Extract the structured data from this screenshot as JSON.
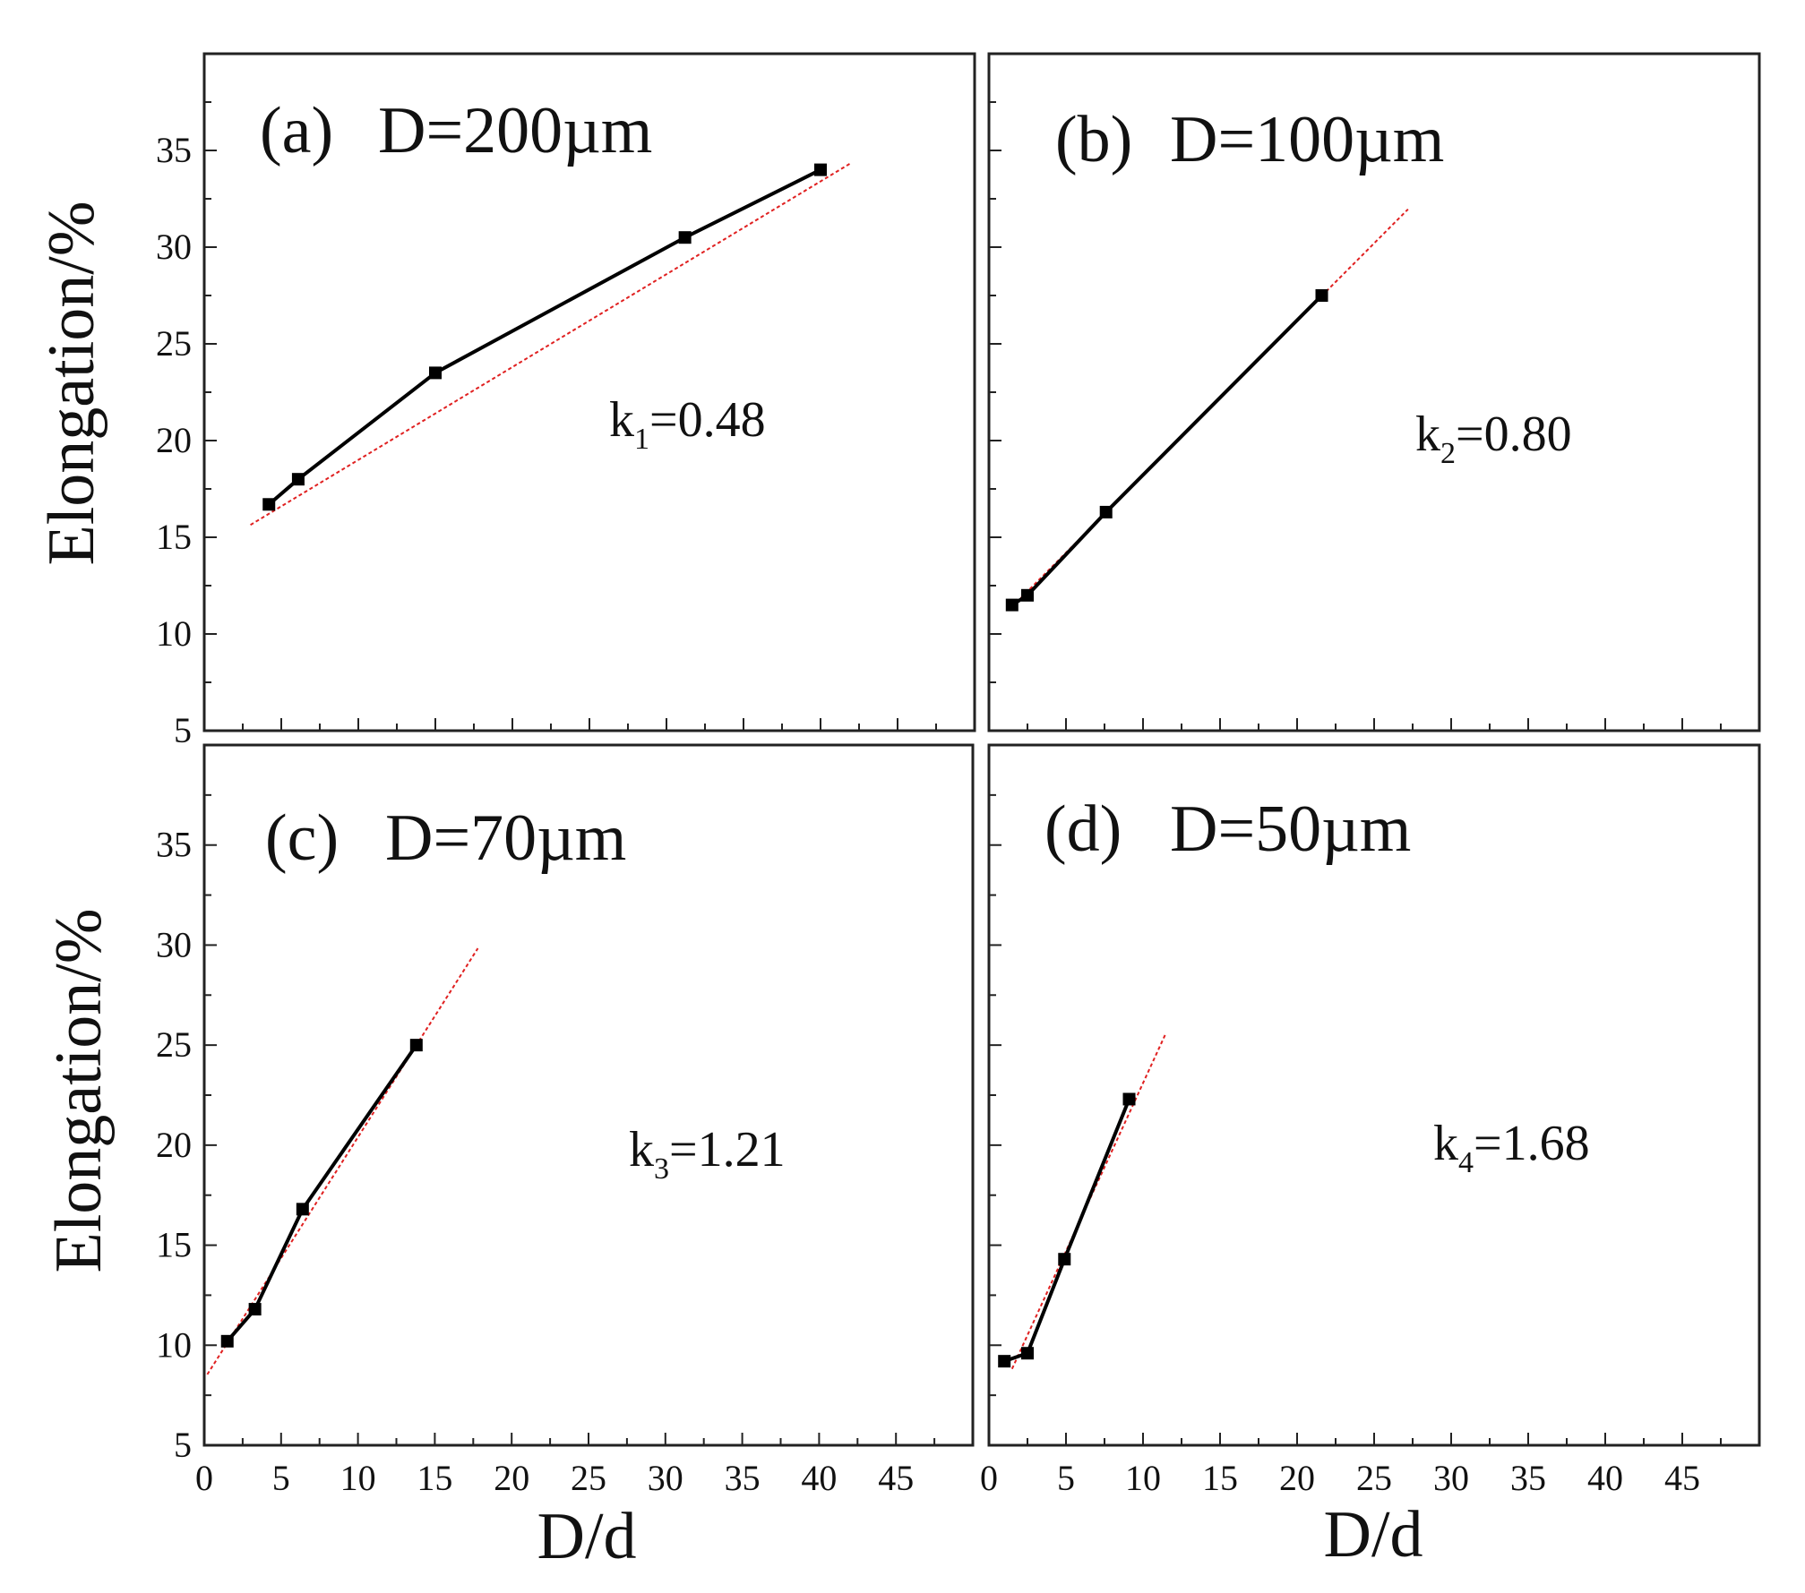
{
  "figure": {
    "y_axis_label": "Elongation/%",
    "x_axis_label": "D/d",
    "colors": {
      "data": "#000000",
      "fit": "#e02020",
      "frame": "#222222"
    }
  },
  "chart_data": [
    {
      "type": "line",
      "panel": "a",
      "label": "(a)",
      "title": "D=200µm",
      "slope_label": {
        "base": "k",
        "sub": "1",
        "value": "=0.48"
      },
      "xlabel": "D/d",
      "ylabel": "Elongation/%",
      "xlim": [
        0,
        50
      ],
      "ylim": [
        5,
        40
      ],
      "xticks": [
        0,
        5,
        10,
        15,
        20,
        25,
        30,
        35,
        40,
        45
      ],
      "yticks": [
        5,
        10,
        15,
        20,
        25,
        30,
        35
      ],
      "series": [
        {
          "name": "data",
          "x": [
            4.2,
            6.1,
            15.0,
            31.2,
            40.0
          ],
          "y": [
            16.7,
            18.0,
            23.5,
            30.5,
            34.0
          ]
        }
      ],
      "fit": {
        "slope": 0.48,
        "intercept": 14.2,
        "x_range": [
          3.0,
          42.0
        ]
      }
    },
    {
      "type": "line",
      "panel": "b",
      "label": "(b)",
      "title": "D=100µm",
      "slope_label": {
        "base": "k",
        "sub": "2",
        "value": "=0.80"
      },
      "xlabel": "D/d",
      "ylabel": "Elongation/%",
      "xlim": [
        0,
        50
      ],
      "ylim": [
        5,
        40
      ],
      "xticks": [
        0,
        5,
        10,
        15,
        20,
        25,
        30,
        35,
        40,
        45
      ],
      "yticks": [
        5,
        10,
        15,
        20,
        25,
        30,
        35
      ],
      "series": [
        {
          "name": "data",
          "x": [
            1.5,
            2.5,
            7.6,
            21.6
          ],
          "y": [
            11.5,
            12.0,
            16.3,
            27.5
          ]
        }
      ],
      "fit": {
        "slope": 0.8,
        "intercept": 10.2,
        "x_range": [
          1.5,
          27.2
        ]
      }
    },
    {
      "type": "line",
      "panel": "c",
      "label": "(c)",
      "title": "D=70µm",
      "slope_label": {
        "base": "k",
        "sub": "3",
        "value": "=1.21"
      },
      "xlabel": "D/d",
      "ylabel": "Elongation/%",
      "xlim": [
        0,
        50
      ],
      "ylim": [
        5,
        40
      ],
      "xticks": [
        0,
        5,
        10,
        15,
        20,
        25,
        30,
        35,
        40,
        45
      ],
      "yticks": [
        5,
        10,
        15,
        20,
        25,
        30,
        35
      ],
      "x_tick_labels_visible": true,
      "series": [
        {
          "name": "data",
          "x": [
            1.5,
            3.3,
            6.4,
            13.8
          ],
          "y": [
            10.2,
            11.8,
            16.8,
            25.0
          ]
        }
      ],
      "fit": {
        "slope": 1.21,
        "intercept": 8.3,
        "x_range": [
          0.2,
          17.8
        ]
      }
    },
    {
      "type": "line",
      "panel": "d",
      "label": "(d)",
      "title": "D=50µm",
      "slope_label": {
        "base": "k",
        "sub": "4",
        "value": "=1.68"
      },
      "xlabel": "D/d",
      "ylabel": "Elongation/%",
      "xlim": [
        0,
        50
      ],
      "ylim": [
        5,
        40
      ],
      "xticks": [
        0,
        5,
        10,
        15,
        20,
        25,
        30,
        35,
        40,
        45
      ],
      "yticks": [
        5,
        10,
        15,
        20,
        25,
        30,
        35
      ],
      "x_tick_labels_visible": true,
      "series": [
        {
          "name": "data",
          "x": [
            1.0,
            2.5,
            4.9,
            9.1
          ],
          "y": [
            9.2,
            9.6,
            14.3,
            22.3
          ]
        }
      ],
      "fit": {
        "slope": 1.68,
        "intercept": 6.3,
        "x_range": [
          1.5,
          11.5
        ]
      }
    }
  ]
}
